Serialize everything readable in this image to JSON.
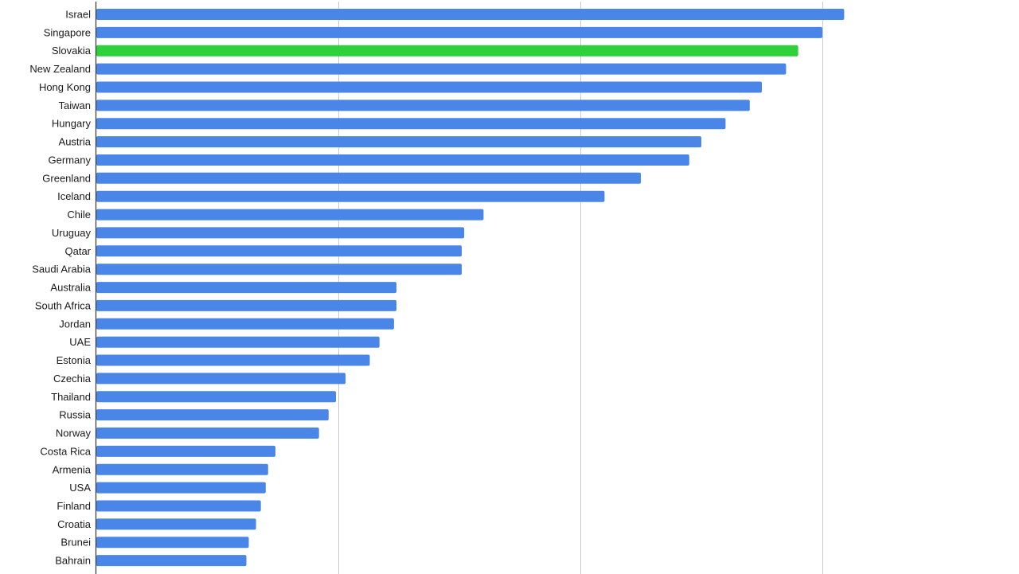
{
  "chart_data": {
    "type": "bar",
    "orientation": "horizontal",
    "title": "",
    "xlabel": "",
    "ylabel": "",
    "categories": [
      "Israel",
      "Singapore",
      "Slovakia",
      "New Zealand",
      "Hong Kong",
      "Taiwan",
      "Hungary",
      "Austria",
      "Germany",
      "Greenland",
      "Iceland",
      "Chile",
      "Uruguay",
      "Qatar",
      "Saudi Arabia",
      "Australia",
      "South Africa",
      "Jordan",
      "UAE",
      "Estonia",
      "Czechia",
      "Thailand",
      "Russia",
      "Norway",
      "Costa Rica",
      "Armenia",
      "USA",
      "Finland",
      "Croatia",
      "Brunei",
      "Bahrain"
    ],
    "values": [
      3.09,
      3.0,
      2.9,
      2.85,
      2.75,
      2.7,
      2.6,
      2.5,
      2.45,
      2.25,
      2.1,
      1.6,
      1.52,
      1.51,
      1.51,
      1.24,
      1.24,
      1.23,
      1.17,
      1.13,
      1.03,
      0.99,
      0.96,
      0.92,
      0.74,
      0.71,
      0.7,
      0.68,
      0.66,
      0.63,
      0.62
    ],
    "xlim": [
      0,
      3.5
    ],
    "grid_x": [
      1,
      2,
      3
    ],
    "tick_labels_shown": false,
    "grid": true,
    "legend": "none",
    "colors": {
      "default": "#4A86E8",
      "highlight": "#2ED13A",
      "grid": "#cccccc",
      "axis": "#333333"
    },
    "highlight": [
      "Slovakia"
    ]
  }
}
